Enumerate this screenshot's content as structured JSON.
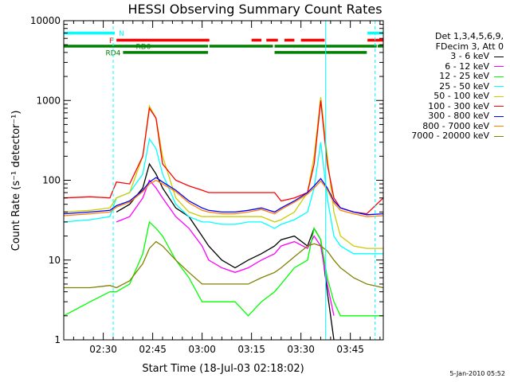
{
  "chart_data": {
    "type": "line",
    "title": "HESSI Observing Summary Count Rates",
    "xlabel": "Start Time (18-Jul-03 02:18:02)",
    "ylabel": "Count Rate (s⁻¹ detector⁻¹)",
    "xlim_minutes": [
      0,
      97
    ],
    "ylim": [
      1,
      10000
    ],
    "yscale": "log",
    "x_ticks": [
      "02:30",
      "02:45",
      "03:00",
      "03:15",
      "03:30",
      "03:45"
    ],
    "y_ticks": [
      "1",
      "10",
      "100",
      "1000",
      "10000"
    ],
    "legend_header": [
      "Det 1,3,4,5,6,9,",
      "FDecim 3, Att 0"
    ],
    "legend_placement": "right",
    "timestamp": "5-Jan-2010 05:52",
    "x_minutes": [
      0,
      8,
      14,
      16,
      20,
      24,
      26,
      28,
      30,
      34,
      38,
      42,
      44,
      48,
      52,
      56,
      60,
      64,
      66,
      70,
      74,
      76,
      78,
      80,
      82,
      84,
      88,
      92,
      97
    ],
    "series": [
      {
        "name": "3 - 6 keV",
        "color": "#000000",
        "values": [
          null,
          null,
          null,
          40,
          50,
          80,
          160,
          120,
          80,
          45,
          35,
          20,
          15,
          10,
          8,
          10,
          12,
          15,
          18,
          20,
          15,
          25,
          18,
          4,
          1,
          null,
          null,
          null,
          null
        ]
      },
      {
        "name": "6 - 12 keV",
        "color": "#ff00ff",
        "values": [
          null,
          null,
          null,
          30,
          35,
          60,
          100,
          80,
          60,
          35,
          25,
          15,
          10,
          8,
          7,
          8,
          10,
          12,
          15,
          17,
          14,
          20,
          15,
          5,
          2,
          null,
          null,
          null,
          null
        ]
      },
      {
        "name": "12 - 25 keV",
        "color": "#00ff00",
        "values": [
          2,
          3,
          4,
          4,
          5,
          12,
          30,
          25,
          20,
          10,
          6,
          3,
          3,
          3,
          3,
          2,
          3,
          4,
          5,
          8,
          10,
          25,
          18,
          6,
          3,
          2,
          2,
          2,
          2
        ]
      },
      {
        "name": "25 - 50 keV",
        "color": "#00ffff",
        "values": [
          30,
          32,
          35,
          60,
          70,
          120,
          330,
          250,
          120,
          50,
          35,
          30,
          30,
          28,
          28,
          30,
          30,
          25,
          28,
          32,
          40,
          80,
          300,
          60,
          20,
          15,
          12,
          12,
          12
        ]
      },
      {
        "name": "50 - 100 keV",
        "color": "#cccc00",
        "values": [
          40,
          42,
          45,
          60,
          70,
          200,
          850,
          600,
          200,
          60,
          40,
          35,
          35,
          35,
          35,
          35,
          35,
          30,
          32,
          40,
          70,
          200,
          1100,
          200,
          40,
          20,
          15,
          14,
          14
        ]
      },
      {
        "name": "100 - 300 keV",
        "color": "#ff0000",
        "values": [
          60,
          62,
          60,
          95,
          90,
          200,
          800,
          600,
          160,
          100,
          85,
          75,
          70,
          70,
          70,
          70,
          70,
          70,
          55,
          60,
          70,
          160,
          1000,
          160,
          60,
          45,
          40,
          38,
          60
        ]
      },
      {
        "name": "300 - 800 keV",
        "color": "#0000ff",
        "values": [
          38,
          40,
          42,
          48,
          55,
          75,
          95,
          108,
          95,
          75,
          55,
          45,
          42,
          40,
          40,
          42,
          45,
          40,
          45,
          55,
          70,
          85,
          105,
          80,
          55,
          45,
          40,
          37,
          38
        ]
      },
      {
        "name": "800 - 7000 keV",
        "color": "#ff8000",
        "values": [
          36,
          38,
          40,
          46,
          53,
          72,
          90,
          100,
          90,
          72,
          52,
          42,
          40,
          38,
          38,
          40,
          43,
          38,
          43,
          53,
          67,
          80,
          98,
          76,
          52,
          42,
          38,
          35,
          36
        ]
      },
      {
        "name": "7000 - 20000 keV",
        "color": "#808000",
        "values": [
          4.5,
          4.5,
          4.8,
          4.5,
          5.5,
          9,
          14,
          17,
          15,
          10,
          7,
          5,
          5,
          5,
          5,
          5,
          6,
          7,
          8,
          11,
          15,
          16,
          15,
          13,
          10,
          8,
          6,
          5,
          4.5
        ]
      }
    ],
    "flags": [
      {
        "label": "N",
        "color": "#00ffff",
        "value": 7000,
        "segments": [
          [
            0,
            15.5
          ],
          [
            92.2,
            97
          ]
        ]
      },
      {
        "label": "F",
        "color": "#ff0000",
        "value": 5700,
        "segments": [
          [
            16,
            44.2
          ],
          [
            57,
            60
          ],
          [
            61.5,
            65
          ],
          [
            67,
            70
          ],
          [
            72,
            79.2
          ],
          [
            92.2,
            97
          ]
        ]
      },
      {
        "label": "RD0",
        "color": "#008000",
        "value": 4800,
        "segments": [
          [
            0,
            43.8
          ],
          [
            44.2,
            63.5
          ],
          [
            64,
            95
          ],
          [
            95.3,
            97
          ]
        ]
      },
      {
        "label": "RD4",
        "color": "#008000",
        "value": 4000,
        "segments": [
          [
            18,
            43.8
          ],
          [
            64,
            92
          ]
        ]
      }
    ],
    "vertical_markers_minutes": [
      0,
      15,
      79.5,
      94.5
    ]
  }
}
